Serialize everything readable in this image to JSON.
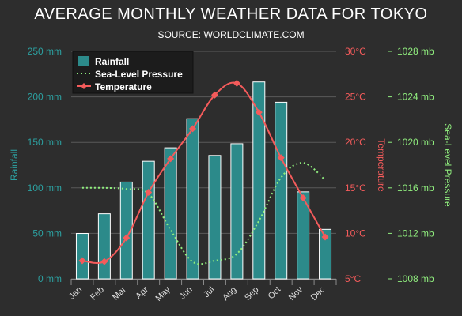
{
  "chart_data": {
    "type": "bar",
    "title": "AVERAGE MONTHLY WEATHER DATA FOR TOKYO",
    "subtitle": "SOURCE: WORLDCLIMATE.COM",
    "categories": [
      "Jan",
      "Feb",
      "Mar",
      "Apr",
      "May",
      "Jun",
      "Jul",
      "Aug",
      "Sep",
      "Oct",
      "Nov",
      "Dec"
    ],
    "series": [
      {
        "name": "Rainfall",
        "type": "bar",
        "axis": "rainfall",
        "color": "#2c8a8a",
        "values": [
          49.9,
          71.5,
          106.4,
          129.2,
          144.0,
          176.0,
          135.6,
          148.5,
          216.4,
          194.1,
          95.6,
          54.4
        ]
      },
      {
        "name": "Sea-Level Pressure",
        "type": "spline",
        "dashed": true,
        "axis": "pressure",
        "color": "#90ee7e",
        "values": [
          1016,
          1016,
          1015.9,
          1015.5,
          1012.3,
          1009.5,
          1009.6,
          1010.2,
          1013.1,
          1016.9,
          1018.2,
          1016.7
        ]
      },
      {
        "name": "Temperature",
        "type": "spline",
        "marker": "diamond",
        "axis": "temperature",
        "color": "#f45b5b",
        "values": [
          7.0,
          6.9,
          9.5,
          14.5,
          18.2,
          21.5,
          25.2,
          26.5,
          23.3,
          18.3,
          13.9,
          9.6
        ]
      }
    ],
    "axes": {
      "rainfall": {
        "label": "Rainfall",
        "min": 0,
        "max": 250,
        "ticks": [
          0,
          50,
          100,
          150,
          200,
          250
        ],
        "ticklabels": [
          "0 mm",
          "50 mm",
          "100 mm",
          "150 mm",
          "200 mm",
          "250 mm"
        ],
        "color": "#2ca0a0",
        "side": "left"
      },
      "temperature": {
        "label": "Temperature",
        "min": 5,
        "max": 30,
        "ticks": [
          5,
          10,
          15,
          20,
          25,
          30
        ],
        "ticklabels": [
          "5°C",
          "10°C",
          "15°C",
          "20°C",
          "25°C",
          "30°C"
        ],
        "color": "#f45b5b",
        "side": "right"
      },
      "pressure": {
        "label": "Sea-Level Pressure",
        "min": 1008,
        "max": 1028,
        "ticks": [
          1008,
          1012,
          1016,
          1020,
          1024,
          1028
        ],
        "ticklabels": [
          "1008 mb",
          "1012 mb",
          "1016 mb",
          "1020 mb",
          "1024 mb",
          "1028 mb"
        ],
        "color": "#90ee7e",
        "side": "right"
      }
    },
    "grid": true,
    "legend_position": "top-left"
  }
}
